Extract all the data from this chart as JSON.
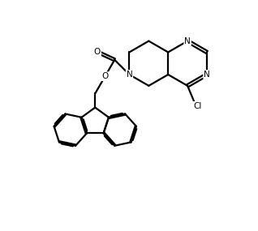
{
  "background_color": "#ffffff",
  "line_color": "#000000",
  "line_width": 1.6,
  "figsize": [
    3.18,
    2.85
  ],
  "dpi": 100,
  "xlim": [
    0,
    10
  ],
  "ylim": [
    0,
    9
  ]
}
